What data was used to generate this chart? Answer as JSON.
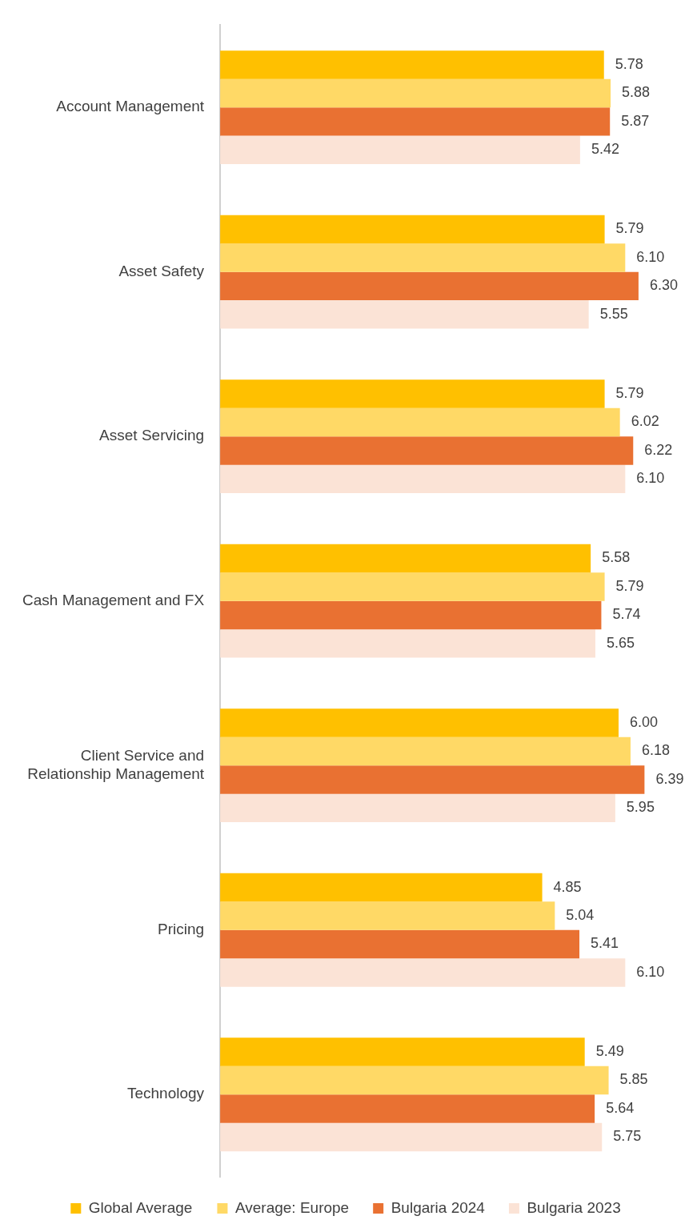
{
  "chart_data": {
    "type": "bar",
    "orientation": "horizontal",
    "categories": [
      "Account Management",
      "Asset Safety",
      "Asset Servicing",
      "Cash Management and FX",
      "Client Service and Relationship Management",
      "Pricing",
      "Technology"
    ],
    "series": [
      {
        "name": "Global Average",
        "color": "#ffc000",
        "values": [
          5.78,
          5.79,
          5.79,
          5.58,
          6.0,
          4.85,
          5.49
        ],
        "value_labels": [
          "5.78",
          "5.79",
          "5.79",
          "5.58",
          "6.00",
          "4.85",
          "5.49"
        ]
      },
      {
        "name": "Average: Europe",
        "color": "#ffd966",
        "values": [
          5.88,
          6.1,
          6.02,
          5.79,
          6.18,
          5.04,
          5.85
        ],
        "value_labels": [
          "5.88",
          "6.10",
          "6.02",
          "5.79",
          "6.18",
          "5.04",
          "5.85"
        ]
      },
      {
        "name": "Bulgaria 2024",
        "color": "#e97132",
        "values": [
          5.87,
          6.3,
          6.22,
          5.74,
          6.39,
          5.41,
          5.64
        ],
        "value_labels": [
          "5.87",
          "6.30",
          "6.22",
          "5.74",
          "6.39",
          "5.41",
          "5.64"
        ]
      },
      {
        "name": "Bulgaria 2023",
        "color": "#fbe3d6",
        "values": [
          5.42,
          5.55,
          6.1,
          5.65,
          5.95,
          6.1,
          5.75
        ],
        "value_labels": [
          "5.42",
          "5.55",
          "6.10",
          "5.65",
          "5.95",
          "6.10",
          "5.75"
        ]
      }
    ],
    "tick_labels": "y",
    "grid": false,
    "legend": "bottom"
  }
}
